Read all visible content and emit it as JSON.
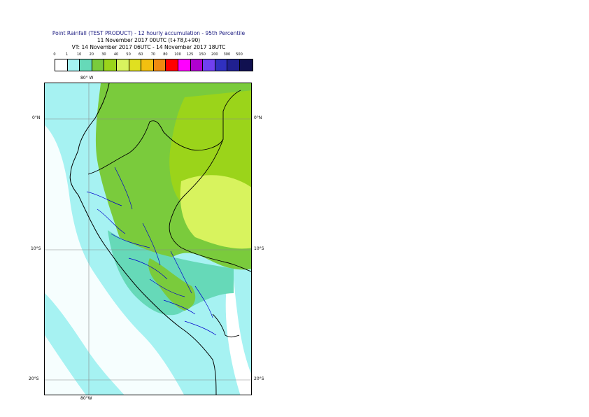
{
  "title": {
    "line1": "Point Rainfall (TEST PRODUCT) - 12 hourly accumulation - 95th Percentile",
    "line2": "11 November 2017 00UTC (t+78,t+90)",
    "line3": "VT: 14 November 2017 06UTC - 14 November 2017 18UTC"
  },
  "legend": {
    "thresholds": [
      "0",
      "1",
      "10",
      "20",
      "30",
      "40",
      "50",
      "60",
      "70",
      "80",
      "100",
      "125",
      "150",
      "200",
      "300",
      "500"
    ],
    "colors": [
      "#ffffff",
      "#a6f2f2",
      "#66d9b8",
      "#7acb3c",
      "#9bd41a",
      "#d8f35e",
      "#e0e020",
      "#f2c010",
      "#f08a10",
      "#ff0000",
      "#ff00ff",
      "#b000d0",
      "#7040f0",
      "#3030c0",
      "#202090",
      "#101050"
    ]
  },
  "map": {
    "labels": {
      "lon_top": "80° W",
      "lon_bottom": "80°W",
      "lat_0_left": "0°N",
      "lat_0_right": "0°N",
      "lat_10_left": "10°S",
      "lat_10_right": "10°S",
      "lat_20_left": "20°S",
      "lat_20_right": "20°S"
    },
    "colors": {
      "ocean_light": "#a6f2f2",
      "green": "#7acb3c",
      "lime": "#9bd41a",
      "yellow": "#d8f35e",
      "teal": "#66d9b8",
      "coast": "#000000",
      "region_border": "#0000cc",
      "grid": "#888888"
    }
  }
}
